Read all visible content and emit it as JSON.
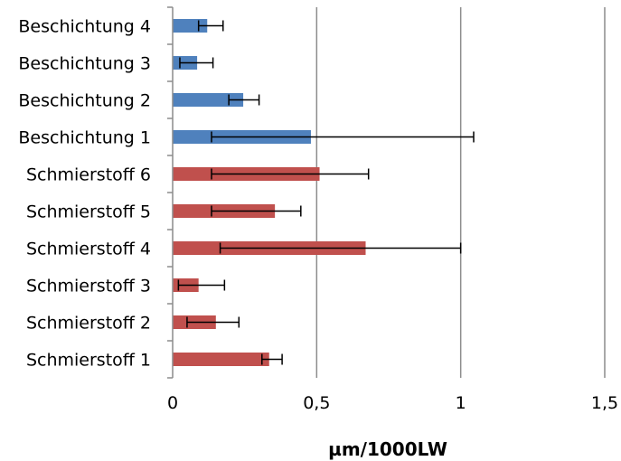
{
  "chart_data": {
    "type": "bar",
    "orientation": "horizontal",
    "title": "",
    "xlabel": "µm/1000LW",
    "ylabel": "",
    "xlim": [
      0,
      1.5
    ],
    "xticks": [
      0,
      0.5,
      1,
      1.5
    ],
    "xtick_labels": [
      "0",
      "0,5",
      "1",
      "1,5"
    ],
    "grid": "vertical",
    "legend": "none",
    "categories": [
      "Schmierstoff 1",
      "Schmierstoff 2",
      "Schmierstoff 3",
      "Schmierstoff 4",
      "Schmierstoff 5",
      "Schmierstoff 6",
      "Beschichtung 1",
      "Beschichtung 2",
      "Beschichtung 3",
      "Beschichtung 4"
    ],
    "values": [
      0.335,
      0.15,
      0.09,
      0.67,
      0.355,
      0.51,
      0.48,
      0.245,
      0.085,
      0.12
    ],
    "error_low": [
      0.31,
      0.05,
      0.02,
      0.165,
      0.135,
      0.135,
      0.135,
      0.195,
      0.025,
      0.09
    ],
    "error_high": [
      0.38,
      0.23,
      0.18,
      1.0,
      0.445,
      0.68,
      1.045,
      0.3,
      0.14,
      0.175
    ],
    "colors": [
      "#c0504d",
      "#c0504d",
      "#c0504d",
      "#c0504d",
      "#c0504d",
      "#c0504d",
      "#4f81bd",
      "#4f81bd",
      "#4f81bd",
      "#4f81bd"
    ]
  }
}
